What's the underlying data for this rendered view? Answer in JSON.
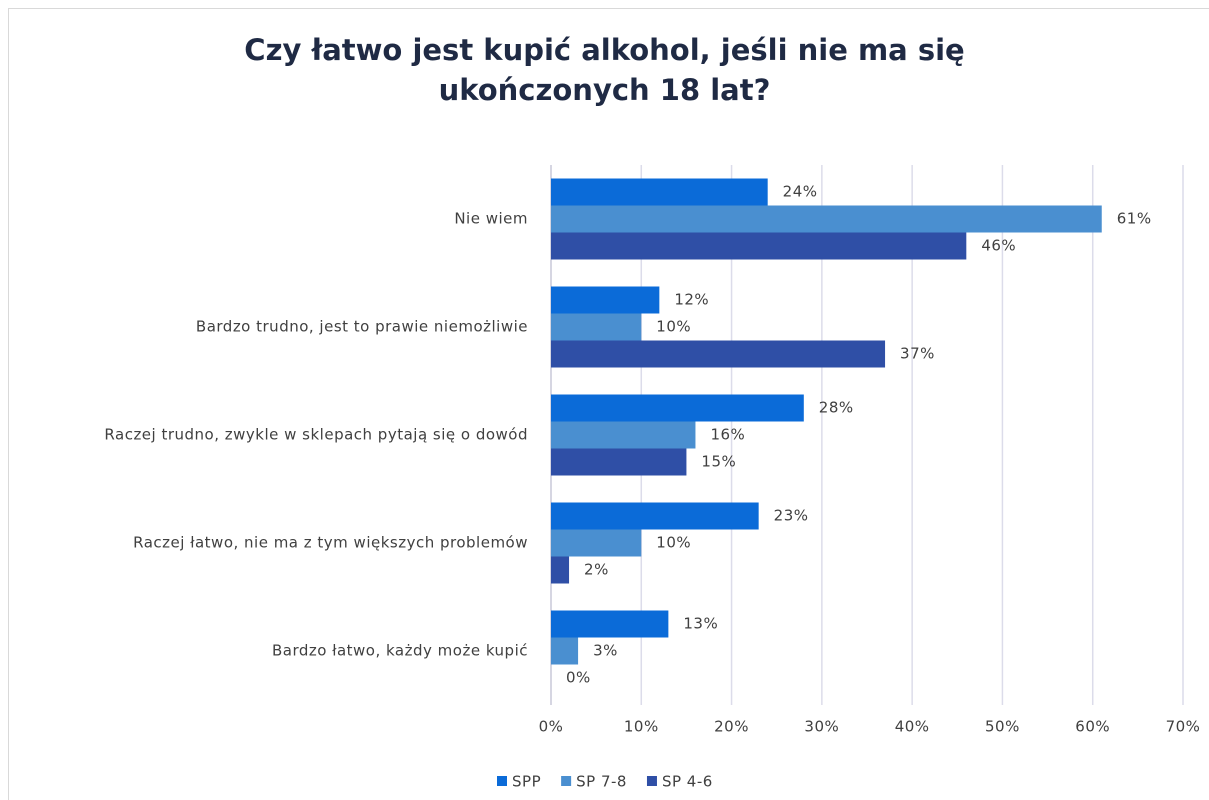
{
  "chart_data": {
    "type": "bar",
    "orientation": "horizontal",
    "title": "Czy łatwo jest kupić alkohol, jeśli nie ma się ukończonych 18 lat?",
    "categories": [
      "Nie wiem",
      "Bardzo trudno, jest to prawie niemożliwie",
      "Raczej trudno, zwykle w sklepach pytają się o dowód",
      "Raczej łatwo, nie ma z tym większych problemów",
      "Bardzo łatwo, każdy może kupić"
    ],
    "series": [
      {
        "name": "SPP",
        "color": "#0b6bd8",
        "values": [
          24,
          12,
          28,
          23,
          13
        ],
        "value_labels": [
          "24%",
          "12%",
          "28%",
          "23%",
          "13%"
        ]
      },
      {
        "name": "SP 7-8",
        "color": "#4a8fd0",
        "values": [
          61,
          10,
          16,
          10,
          3
        ],
        "value_labels": [
          "61%",
          "10%",
          "16%",
          "10%",
          "3%"
        ]
      },
      {
        "name": "SP 4-6",
        "color": "#2f4fa6",
        "values": [
          46,
          37,
          15,
          2,
          0
        ],
        "value_labels": [
          "46%",
          "37%",
          "15%",
          "2%",
          "0%"
        ]
      }
    ],
    "xlim": [
      0,
      70
    ],
    "xticks": [
      {
        "value": 0,
        "label": "0%"
      },
      {
        "value": 10,
        "label": "10%"
      },
      {
        "value": 20,
        "label": "20%"
      },
      {
        "value": 30,
        "label": "30%"
      },
      {
        "value": 40,
        "label": "40%"
      },
      {
        "value": 50,
        "label": "50%"
      },
      {
        "value": 60,
        "label": "60%"
      },
      {
        "value": 70,
        "label": "70%"
      }
    ],
    "grid": true,
    "legend": "bottom"
  }
}
